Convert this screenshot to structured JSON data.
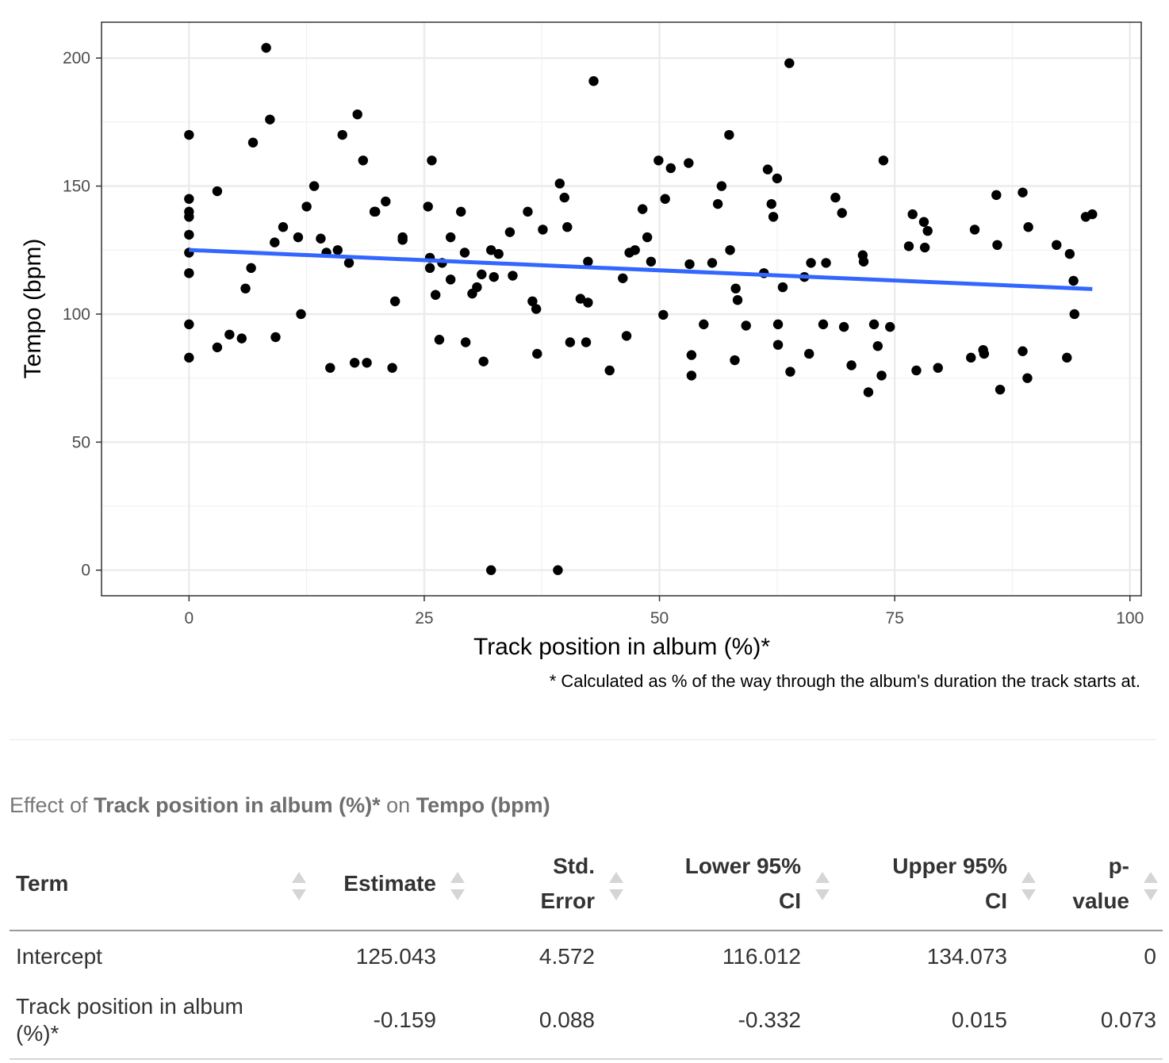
{
  "chart_data": {
    "type": "scatter",
    "xlabel": "Track position in album (%)*",
    "ylabel": "Tempo (bpm)",
    "caption": "* Calculated as % of the way through the album's duration the track starts at.",
    "xlim": [
      -9.3,
      101.2
    ],
    "ylim": [
      -10,
      214
    ],
    "x_ticks": [
      0,
      25,
      50,
      75,
      100
    ],
    "y_ticks": [
      0,
      50,
      100,
      150,
      200
    ],
    "grid": true,
    "point_color": "#000000",
    "fit_line": {
      "name": "",
      "color": "#3366FF",
      "intercept": 125.043,
      "slope": -0.159,
      "x_range": [
        0,
        96
      ]
    },
    "points": [
      [
        0,
        170
      ],
      [
        0,
        145
      ],
      [
        0,
        140
      ],
      [
        0,
        138
      ],
      [
        0,
        131
      ],
      [
        0,
        124
      ],
      [
        0,
        116
      ],
      [
        0,
        96
      ],
      [
        0,
        83
      ],
      [
        3,
        148
      ],
      [
        3,
        87
      ],
      [
        4.3,
        92
      ],
      [
        5.6,
        90.5
      ],
      [
        6,
        110
      ],
      [
        6.6,
        118
      ],
      [
        6.8,
        167
      ],
      [
        8.2,
        204
      ],
      [
        8.6,
        176
      ],
      [
        9.1,
        128
      ],
      [
        9.2,
        91
      ],
      [
        10,
        134
      ],
      [
        11.6,
        130
      ],
      [
        11.9,
        100
      ],
      [
        12.5,
        142
      ],
      [
        13.3,
        150
      ],
      [
        14,
        129.5
      ],
      [
        14.6,
        124
      ],
      [
        15,
        79
      ],
      [
        15.8,
        125
      ],
      [
        16.3,
        170
      ],
      [
        17,
        120
      ],
      [
        17.6,
        81
      ],
      [
        17.9,
        178
      ],
      [
        18.5,
        160
      ],
      [
        18.9,
        81
      ],
      [
        19.7,
        140
      ],
      [
        19.8,
        140
      ],
      [
        20.9,
        144
      ],
      [
        21.6,
        79
      ],
      [
        21.9,
        105
      ],
      [
        22.7,
        130
      ],
      [
        22.7,
        129
      ],
      [
        25.4,
        142
      ],
      [
        25.6,
        122
      ],
      [
        25.6,
        118
      ],
      [
        25.8,
        160
      ],
      [
        26.2,
        107.5
      ],
      [
        26.6,
        90
      ],
      [
        26.9,
        120
      ],
      [
        27.8,
        130
      ],
      [
        27.8,
        113.5
      ],
      [
        28.9,
        140
      ],
      [
        29.3,
        124
      ],
      [
        29.4,
        89
      ],
      [
        30.1,
        108
      ],
      [
        30.6,
        110.5
      ],
      [
        31.1,
        115.5
      ],
      [
        31.3,
        81.5
      ],
      [
        32.1,
        0
      ],
      [
        32.1,
        125
      ],
      [
        32.4,
        114.5
      ],
      [
        32.9,
        123.5
      ],
      [
        34.1,
        132
      ],
      [
        34.4,
        115
      ],
      [
        36,
        140
      ],
      [
        36.5,
        105
      ],
      [
        36.9,
        102
      ],
      [
        37,
        84.5
      ],
      [
        37.6,
        133
      ],
      [
        39.2,
        0
      ],
      [
        39.4,
        151
      ],
      [
        39.9,
        145.5
      ],
      [
        40.2,
        134
      ],
      [
        40.5,
        89
      ],
      [
        41.6,
        106
      ],
      [
        42.2,
        89
      ],
      [
        42.4,
        120.5
      ],
      [
        42.4,
        104.5
      ],
      [
        43,
        191
      ],
      [
        44.7,
        78
      ],
      [
        46.1,
        114
      ],
      [
        46.5,
        91.5
      ],
      [
        46.8,
        124
      ],
      [
        47.4,
        125
      ],
      [
        48.2,
        141
      ],
      [
        48.7,
        130
      ],
      [
        49.1,
        120.5
      ],
      [
        49.9,
        160
      ],
      [
        50.4,
        99.7
      ],
      [
        50.6,
        145
      ],
      [
        51.2,
        157
      ],
      [
        53.1,
        159
      ],
      [
        53.2,
        119.5
      ],
      [
        53.4,
        84
      ],
      [
        53.4,
        76
      ],
      [
        54.7,
        96
      ],
      [
        55.6,
        120
      ],
      [
        56.2,
        143
      ],
      [
        56.6,
        150
      ],
      [
        57.4,
        170
      ],
      [
        57.5,
        125
      ],
      [
        58,
        82
      ],
      [
        58.1,
        110
      ],
      [
        58.3,
        105.5
      ],
      [
        59.2,
        95.5
      ],
      [
        61.1,
        116
      ],
      [
        61.5,
        156.5
      ],
      [
        61.9,
        143
      ],
      [
        62.1,
        138
      ],
      [
        62.5,
        153
      ],
      [
        62.6,
        96
      ],
      [
        62.6,
        88
      ],
      [
        63.1,
        110.5
      ],
      [
        63.8,
        198
      ],
      [
        63.9,
        77.5
      ],
      [
        65.4,
        114.5
      ],
      [
        65.9,
        84.5
      ],
      [
        66.1,
        120
      ],
      [
        67.4,
        96
      ],
      [
        67.7,
        120
      ],
      [
        68.7,
        145.5
      ],
      [
        69.4,
        139.5
      ],
      [
        69.6,
        95
      ],
      [
        70.4,
        80
      ],
      [
        71.6,
        123
      ],
      [
        71.7,
        120.5
      ],
      [
        72.2,
        69.5
      ],
      [
        72.8,
        96
      ],
      [
        73.2,
        87.5
      ],
      [
        73.6,
        76
      ],
      [
        73.8,
        160
      ],
      [
        74.5,
        95
      ],
      [
        76.5,
        126.5
      ],
      [
        76.9,
        139
      ],
      [
        77.3,
        78
      ],
      [
        78.1,
        136
      ],
      [
        78.2,
        126
      ],
      [
        78.5,
        132.5
      ],
      [
        79.6,
        79
      ],
      [
        83.1,
        83
      ],
      [
        83.5,
        133
      ],
      [
        84.4,
        86
      ],
      [
        84.5,
        84.5
      ],
      [
        85.8,
        146.5
      ],
      [
        85.9,
        127
      ],
      [
        86.2,
        70.5
      ],
      [
        88.6,
        147.5
      ],
      [
        88.6,
        85.5
      ],
      [
        89.1,
        75
      ],
      [
        89.2,
        134
      ],
      [
        92.2,
        127
      ],
      [
        93.3,
        83
      ],
      [
        93.6,
        123.5
      ],
      [
        94,
        113
      ],
      [
        94.1,
        100
      ],
      [
        95.3,
        138
      ],
      [
        96,
        139
      ]
    ]
  },
  "results_table": {
    "caption_prefix": "Effect of ",
    "caption_x": "Track position in album (%)*",
    "caption_mid": " on ",
    "caption_y": "Tempo (bpm)",
    "headers": [
      "Term",
      "Estimate",
      "Std. Error",
      "Lower 95% CI",
      "Upper 95% CI",
      "p-value"
    ],
    "rows": [
      [
        "Intercept",
        "125.043",
        "4.572",
        "116.012",
        "134.073",
        "0"
      ],
      [
        "Track position in album (%)*",
        "-0.159",
        "0.088",
        "-0.332",
        "0.015",
        "0.073"
      ]
    ]
  }
}
